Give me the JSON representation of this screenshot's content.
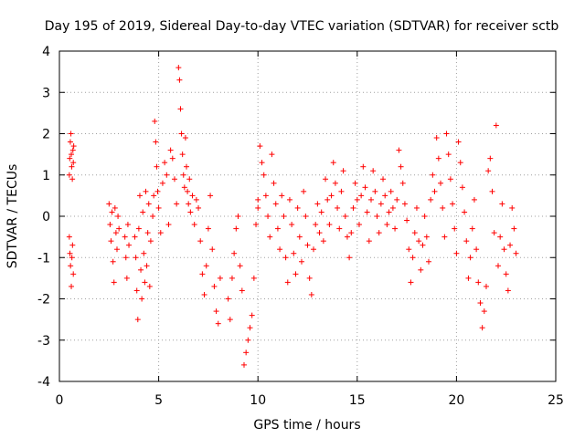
{
  "chart_data": {
    "type": "scatter",
    "title": "Day 195 of 2019, Sidereal Day-to-day VTEC variation (SDTVAR) for receiver sctb",
    "xlabel": "GPS time / hours",
    "ylabel": "SDTVAR / TECUs",
    "xlim": [
      0,
      25
    ],
    "ylim": [
      -4,
      4
    ],
    "xticks": [
      "0",
      "5",
      "10",
      "15",
      "20",
      "25"
    ],
    "yticks": [
      "-4",
      "-3",
      "-2",
      "-1",
      "0",
      "1",
      "2",
      "3",
      "4"
    ],
    "grid": true,
    "marker": "+",
    "color": "#ff0000",
    "series": [
      {
        "name": "SDTVAR",
        "x": [
          0.5,
          0.52,
          0.55,
          0.58,
          0.6,
          0.62,
          0.65,
          0.68,
          0.7,
          0.72,
          0.5,
          0.53,
          0.56,
          0.6,
          0.63,
          0.66,
          0.7,
          2.5,
          2.55,
          2.6,
          2.65,
          2.7,
          2.75,
          2.8,
          2.85,
          2.9,
          2.95,
          3.0,
          3.3,
          3.35,
          3.4,
          3.45,
          3.5,
          3.8,
          3.85,
          3.9,
          3.95,
          4.0,
          4.05,
          4.1,
          4.15,
          4.2,
          4.25,
          4.3,
          4.35,
          4.4,
          4.45,
          4.5,
          4.55,
          4.6,
          4.7,
          4.75,
          4.8,
          4.85,
          4.9,
          4.95,
          5.0,
          5.1,
          5.2,
          5.3,
          5.4,
          5.5,
          5.6,
          5.7,
          5.8,
          5.9,
          6.0,
          6.05,
          6.1,
          6.15,
          6.2,
          6.25,
          6.3,
          6.35,
          6.4,
          6.45,
          6.5,
          6.55,
          6.6,
          6.7,
          6.8,
          6.9,
          7.0,
          7.1,
          7.2,
          7.3,
          7.4,
          7.5,
          7.6,
          7.7,
          7.8,
          7.9,
          8.0,
          8.1,
          8.5,
          8.6,
          8.7,
          8.8,
          8.9,
          9.0,
          9.1,
          9.2,
          9.3,
          9.4,
          9.5,
          9.6,
          9.7,
          9.8,
          9.9,
          10.0,
          10.0,
          10.1,
          10.2,
          10.3,
          10.4,
          10.5,
          10.6,
          10.7,
          10.8,
          10.9,
          11.0,
          11.1,
          11.2,
          11.3,
          11.4,
          11.5,
          11.6,
          11.7,
          11.8,
          11.9,
          12.0,
          12.1,
          12.2,
          12.3,
          12.4,
          12.5,
          12.6,
          12.7,
          12.8,
          12.9,
          13.0,
          13.1,
          13.2,
          13.3,
          13.4,
          13.5,
          13.6,
          13.7,
          13.8,
          13.9,
          14.0,
          14.1,
          14.2,
          14.3,
          14.4,
          14.5,
          14.6,
          14.7,
          14.8,
          14.9,
          15.0,
          15.1,
          15.2,
          15.3,
          15.4,
          15.5,
          15.6,
          15.7,
          15.8,
          15.9,
          16.0,
          16.1,
          16.2,
          16.3,
          16.4,
          16.5,
          16.6,
          16.7,
          16.8,
          16.9,
          17.0,
          17.1,
          17.2,
          17.3,
          17.4,
          17.5,
          17.6,
          17.7,
          17.8,
          17.9,
          18.0,
          18.1,
          18.2,
          18.3,
          18.4,
          18.5,
          18.6,
          18.7,
          18.8,
          18.9,
          19.0,
          19.1,
          19.2,
          19.3,
          19.4,
          19.5,
          19.6,
          19.7,
          19.8,
          19.9,
          20.0,
          20.1,
          20.2,
          20.3,
          20.4,
          20.5,
          20.6,
          20.7,
          20.8,
          20.9,
          21.0,
          21.1,
          21.2,
          21.3,
          21.4,
          21.5,
          21.6,
          21.7,
          21.8,
          21.9,
          22.0,
          22.1,
          22.2,
          22.3,
          22.4,
          22.5,
          22.6,
          22.7,
          22.8,
          22.9,
          23.0
        ],
        "y": [
          1.0,
          1.4,
          1.8,
          2.0,
          1.5,
          1.2,
          0.9,
          1.6,
          1.3,
          1.7,
          -0.5,
          -0.9,
          -1.2,
          -1.7,
          -1.0,
          -0.7,
          -1.4,
          0.3,
          -0.2,
          -0.6,
          0.1,
          -1.1,
          -1.6,
          0.2,
          -0.4,
          -0.8,
          0.0,
          -0.3,
          -0.5,
          -1.0,
          -1.5,
          -0.2,
          -0.7,
          -0.5,
          -1.0,
          -1.8,
          -2.5,
          -0.3,
          0.5,
          -1.3,
          -2.0,
          0.1,
          -0.9,
          -1.6,
          0.6,
          -1.2,
          -0.4,
          0.3,
          -1.7,
          -0.6,
          0.0,
          0.5,
          2.3,
          1.8,
          1.2,
          0.6,
          0.2,
          -0.4,
          0.8,
          1.3,
          1.0,
          -0.2,
          1.6,
          1.4,
          0.9,
          0.3,
          3.6,
          3.3,
          2.6,
          2.0,
          1.5,
          1.0,
          0.7,
          1.9,
          1.2,
          0.6,
          0.3,
          0.9,
          0.1,
          0.5,
          -0.2,
          0.4,
          0.2,
          -0.6,
          -1.4,
          -1.9,
          -1.2,
          -0.3,
          0.5,
          -0.8,
          -1.7,
          -2.3,
          -2.6,
          -1.5,
          -2.0,
          -2.5,
          -1.5,
          -0.9,
          -0.3,
          0.0,
          -1.2,
          -1.8,
          -3.6,
          -3.3,
          -3.0,
          -2.7,
          -2.4,
          -1.5,
          -0.2,
          0.4,
          0.2,
          1.7,
          1.3,
          1.0,
          0.5,
          0.0,
          -0.5,
          1.5,
          0.8,
          0.3,
          -0.3,
          -0.8,
          0.5,
          0.0,
          -1.0,
          -1.6,
          0.4,
          -0.2,
          -0.9,
          -1.4,
          0.2,
          -0.5,
          -1.1,
          0.6,
          0.0,
          -0.7,
          -1.5,
          -1.9,
          -0.8,
          -0.2,
          0.3,
          -0.4,
          0.1,
          -0.6,
          0.9,
          0.4,
          -0.2,
          0.5,
          1.3,
          0.8,
          0.2,
          -0.3,
          0.6,
          1.1,
          0.0,
          -0.5,
          -1.0,
          -0.4,
          0.2,
          0.8,
          0.4,
          -0.2,
          0.5,
          1.2,
          0.7,
          0.1,
          -0.6,
          0.4,
          1.1,
          0.6,
          0.0,
          -0.4,
          0.3,
          0.9,
          0.5,
          -0.2,
          0.1,
          0.6,
          0.2,
          -0.3,
          0.4,
          1.6,
          1.2,
          0.8,
          0.3,
          -0.1,
          -0.8,
          -1.6,
          -1.0,
          -0.4,
          0.2,
          -0.6,
          -1.3,
          -0.7,
          0.0,
          -0.5,
          -1.1,
          0.4,
          1.0,
          0.6,
          1.9,
          1.4,
          0.8,
          0.2,
          -0.5,
          2.0,
          1.5,
          0.9,
          0.3,
          -0.3,
          -0.9,
          1.8,
          1.3,
          0.7,
          0.1,
          -0.6,
          -1.5,
          -1.0,
          -0.3,
          0.4,
          -0.8,
          -1.6,
          -2.1,
          -2.7,
          -2.3,
          -1.7,
          1.1,
          1.4,
          0.6,
          -0.4,
          2.2,
          -1.2,
          -0.5,
          0.3,
          -0.8,
          -1.4,
          -1.8,
          -0.7,
          0.2,
          -0.3,
          -0.9
        ]
      }
    ]
  }
}
